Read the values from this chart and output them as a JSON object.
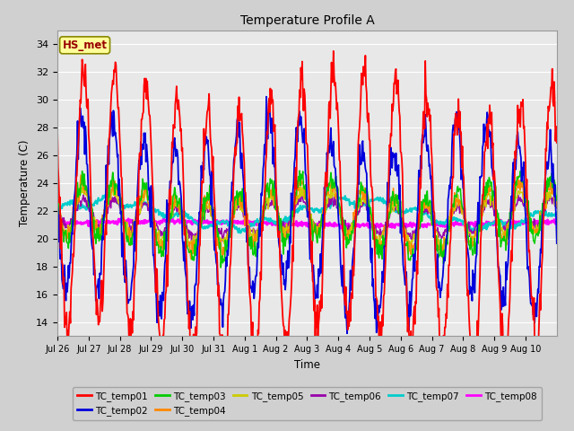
{
  "title": "Temperature Profile A",
  "xlabel": "Time",
  "ylabel": "Temperature (C)",
  "ylim": [
    13,
    35
  ],
  "yticks": [
    14,
    16,
    18,
    20,
    22,
    24,
    26,
    28,
    30,
    32,
    34
  ],
  "annotation": "HS_met",
  "fig_bg_color": "#d0d0d0",
  "plot_bg_color": "#e8e8e8",
  "series_colors": {
    "TC_temp01": "#ff0000",
    "TC_temp02": "#0000dd",
    "TC_temp03": "#00cc00",
    "TC_temp04": "#ff8800",
    "TC_temp05": "#cccc00",
    "TC_temp06": "#9900aa",
    "TC_temp07": "#00cccc",
    "TC_temp08": "#ff00ff"
  },
  "xtick_labels": [
    "Jul 26",
    "Jul 27",
    "Jul 28",
    "Jul 29",
    "Jul 30",
    "Jul 31",
    "Aug 1",
    "Aug 2",
    "Aug 3",
    "Aug 4",
    "Aug 5",
    "Aug 6",
    "Aug 7",
    "Aug 8",
    "Aug 9",
    "Aug 10"
  ],
  "n_days": 16,
  "points_per_day": 48
}
